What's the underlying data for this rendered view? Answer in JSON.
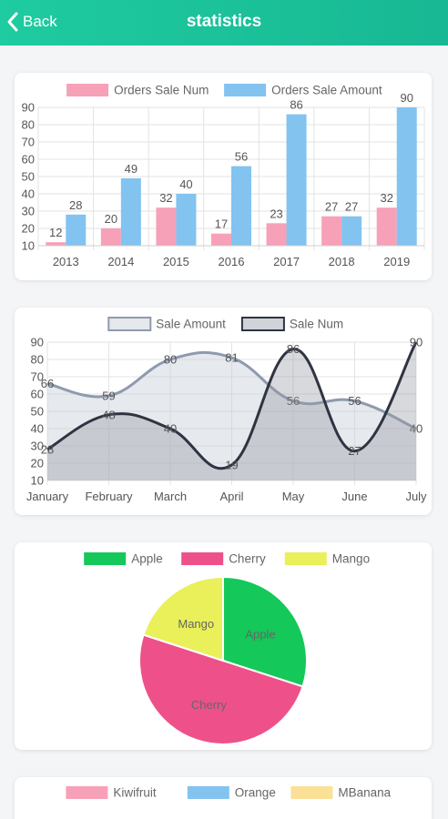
{
  "header": {
    "back_label": "Back",
    "title": "statistics"
  },
  "chart_data": [
    {
      "type": "bar",
      "categories": [
        "2013",
        "2014",
        "2015",
        "2016",
        "2017",
        "2018",
        "2019"
      ],
      "series": [
        {
          "name": "Orders Sale Num",
          "values": [
            12,
            20,
            32,
            17,
            23,
            27,
            32
          ],
          "color": "#f7a1b8"
        },
        {
          "name": "Orders Sale Amount",
          "values": [
            28,
            49,
            40,
            56,
            86,
            27,
            90
          ],
          "color": "#82c3f0"
        }
      ],
      "ylim": [
        10,
        90
      ],
      "yticks": [
        10,
        20,
        30,
        40,
        50,
        60,
        70,
        80,
        90
      ],
      "grid": true,
      "legend": "top"
    },
    {
      "type": "area",
      "categories": [
        "January",
        "February",
        "March",
        "April",
        "May",
        "June",
        "July"
      ],
      "series": [
        {
          "name": "Sale Amount",
          "values": [
            66,
            59,
            80,
            81,
            56,
            56,
            40
          ],
          "color": "#8e9aae"
        },
        {
          "name": "Sale Num",
          "values": [
            28,
            48,
            40,
            19,
            86,
            27,
            90
          ],
          "color": "#2e3442"
        }
      ],
      "ylim": [
        10,
        90
      ],
      "yticks": [
        10,
        20,
        30,
        40,
        50,
        60,
        70,
        80,
        90
      ],
      "grid": true,
      "legend": "top"
    },
    {
      "type": "pie",
      "labels": [
        "Apple",
        "Cherry",
        "Mango"
      ],
      "values": [
        30,
        50,
        20
      ],
      "colors": [
        "#14c85a",
        "#ee5189",
        "#e9f05a"
      ],
      "legend": "top"
    },
    {
      "type": "pie",
      "labels": [
        "Kiwifruit",
        "Orange",
        "MBanana"
      ],
      "colors": [
        "#f7a1b8",
        "#82c3f0",
        "#fbe098"
      ],
      "legend": "top"
    }
  ]
}
